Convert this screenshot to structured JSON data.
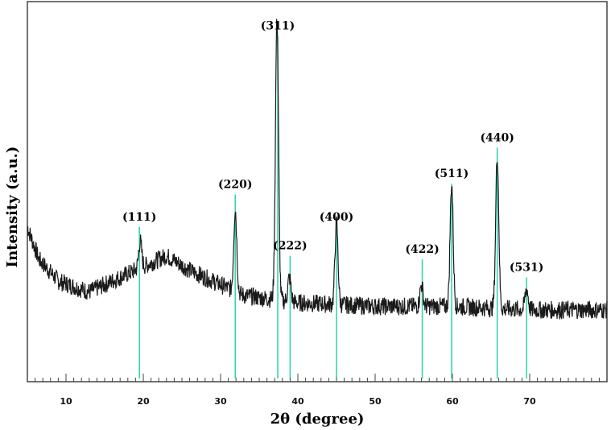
{
  "chart_data": {
    "type": "line",
    "xlabel": "2θ (degree)",
    "ylabel": "Intensity (a.u.)",
    "xlim": [
      5,
      80
    ],
    "ylim": [
      0,
      100
    ],
    "x_ticks_major": [
      10,
      20,
      30,
      40,
      50,
      60,
      70
    ],
    "x_tick_labels": [
      "10",
      "20",
      "30",
      "40",
      "50",
      "60",
      "70"
    ],
    "y_ticks_shown": false,
    "grid": false,
    "colors": {
      "pattern": "#1a1a1a",
      "reference": "#33d6b0",
      "axes": "#444444"
    },
    "reference_lines": [
      {
        "two_theta": 19.5,
        "height": 42,
        "label": "(111)"
      },
      {
        "two_theta": 31.9,
        "height": 51,
        "label": "(220)"
      },
      {
        "two_theta": 37.4,
        "height": 95,
        "label": "(311)"
      },
      {
        "two_theta": 39.0,
        "height": 34,
        "label": "(222)"
      },
      {
        "two_theta": 45.0,
        "height": 42,
        "label": "(400)"
      },
      {
        "two_theta": 56.1,
        "height": 33,
        "label": "(422)"
      },
      {
        "two_theta": 59.9,
        "height": 54,
        "label": "(511)"
      },
      {
        "two_theta": 65.8,
        "height": 64,
        "label": "(440)"
      },
      {
        "two_theta": 69.6,
        "height": 28,
        "label": "(531)"
      }
    ],
    "pattern": {
      "baseline_points": [
        [
          5.0,
          42
        ],
        [
          6.5,
          33
        ],
        [
          9,
          27
        ],
        [
          13,
          24
        ],
        [
          17,
          28
        ],
        [
          20,
          31
        ],
        [
          23,
          34
        ],
        [
          26,
          30
        ],
        [
          29,
          27
        ],
        [
          33,
          23
        ],
        [
          40,
          21
        ],
        [
          50,
          20
        ],
        [
          60,
          20
        ],
        [
          70,
          19
        ],
        [
          80,
          19
        ]
      ],
      "peaks": [
        {
          "two_theta": 19.6,
          "intensity": 38
        },
        {
          "two_theta": 31.9,
          "intensity": 47
        },
        {
          "two_theta": 37.3,
          "intensity": 100
        },
        {
          "two_theta": 38.9,
          "intensity": 28
        },
        {
          "two_theta": 45.0,
          "intensity": 43
        },
        {
          "two_theta": 56.0,
          "intensity": 26
        },
        {
          "two_theta": 59.9,
          "intensity": 54
        },
        {
          "two_theta": 65.8,
          "intensity": 62
        },
        {
          "two_theta": 69.6,
          "intensity": 25
        }
      ],
      "noise_amplitude": 2.5
    }
  }
}
